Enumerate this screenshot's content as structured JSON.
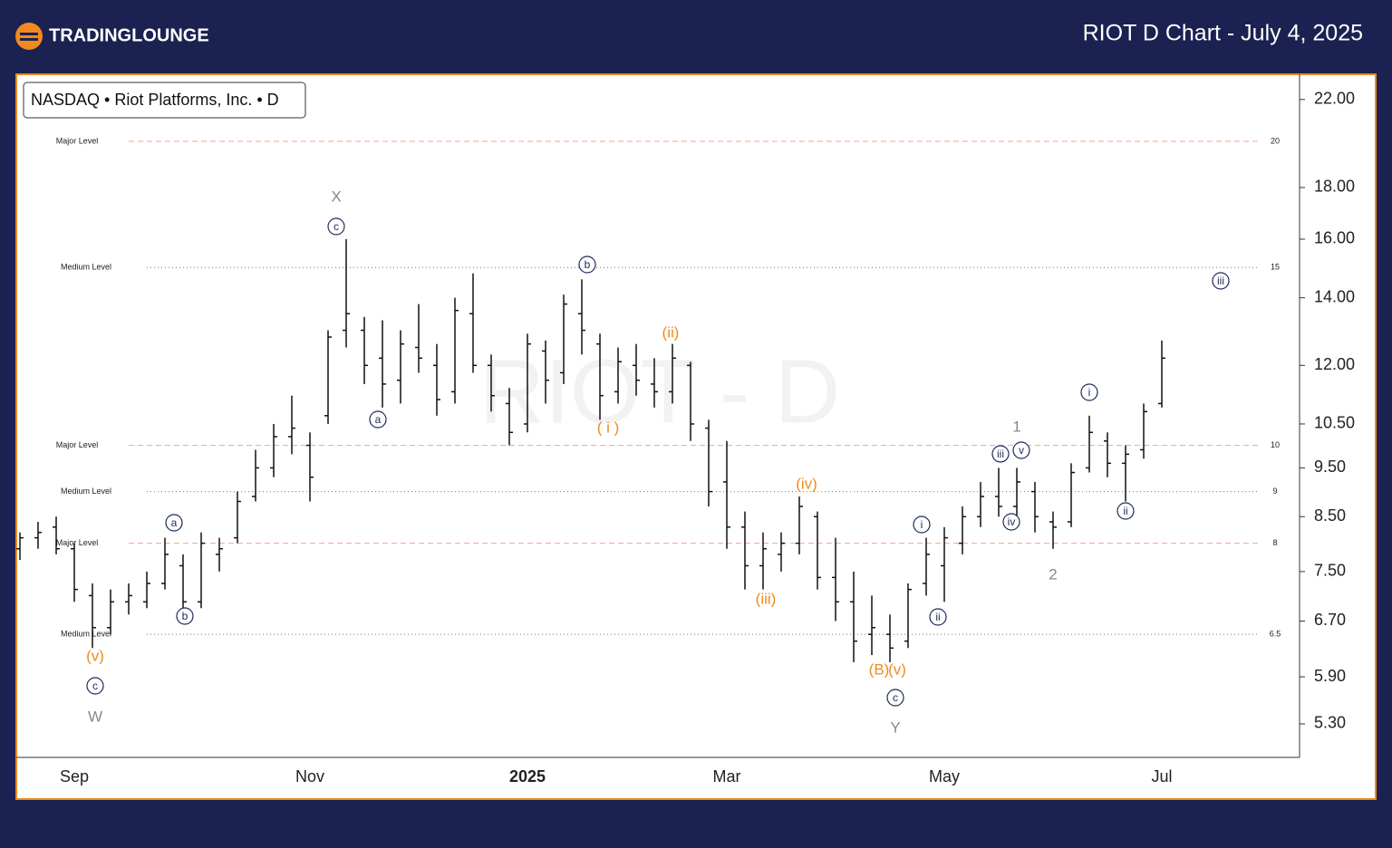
{
  "header": {
    "logo": "TRADINGLOUNGE",
    "title": "RIOT D Chart - July 4, 2025"
  },
  "chart_data": {
    "type": "ohlc",
    "legend_text": "NASDAQ • Riot Platforms, Inc. • D",
    "watermark": "RIOT - D",
    "color": "#111111",
    "log_y": true,
    "ylim": [
      4.91,
      23.3
    ],
    "yticks": [
      {
        "value": 22,
        "label": "22.00"
      },
      {
        "value": 18,
        "label": "18.00"
      },
      {
        "value": 16,
        "label": "16.00"
      },
      {
        "value": 14,
        "label": "14.00"
      },
      {
        "value": 12,
        "label": "12.00"
      },
      {
        "value": 10.5,
        "label": "10.50"
      },
      {
        "value": 9.5,
        "label": "9.50"
      },
      {
        "value": 8.5,
        "label": "8.50"
      },
      {
        "value": 7.5,
        "label": "7.50"
      },
      {
        "value": 6.7,
        "label": "6.70"
      },
      {
        "value": 5.9,
        "label": "5.90"
      },
      {
        "value": 5.3,
        "label": "5.30"
      }
    ],
    "categories": [
      null,
      null,
      null,
      "Sep",
      null,
      null,
      null,
      null,
      null,
      null,
      null,
      null,
      null,
      null,
      null,
      null,
      "Nov",
      null,
      null,
      null,
      null,
      null,
      null,
      null,
      null,
      null,
      null,
      null,
      "2025",
      null,
      null,
      null,
      null,
      null,
      null,
      null,
      null,
      null,
      null,
      "Mar",
      null,
      null,
      null,
      null,
      null,
      null,
      null,
      null,
      null,
      null,
      null,
      "May",
      null,
      null,
      null,
      null,
      null,
      null,
      null,
      null,
      null,
      null,
      null,
      "Jul"
    ],
    "open": [
      7.9,
      8.1,
      8.3,
      7.9,
      7.1,
      6.6,
      7.0,
      7.0,
      7.3,
      7.6,
      7.0,
      7.8,
      8.1,
      8.9,
      9.5,
      10.2,
      10.0,
      10.7,
      13.0,
      13.0,
      12.2,
      11.6,
      12.5,
      12.0,
      11.3,
      13.5,
      12.0,
      11.0,
      10.5,
      12.4,
      11.8,
      13.5,
      12.6,
      11.3,
      12.0,
      11.5,
      11.3,
      12.0,
      10.4,
      9.2,
      8.3,
      7.6,
      7.8,
      8.0,
      8.5,
      7.4,
      7.0,
      6.5,
      6.5,
      6.4,
      7.3,
      7.6,
      8.0,
      8.5,
      8.9,
      8.7,
      9.0,
      8.4,
      8.4,
      9.5,
      10.1,
      9.6,
      9.9,
      11.0
    ],
    "high": [
      8.2,
      8.4,
      8.5,
      8.0,
      7.3,
      7.2,
      7.3,
      7.5,
      8.1,
      7.8,
      8.2,
      8.1,
      9.0,
      9.9,
      10.5,
      11.2,
      10.3,
      13.0,
      16.0,
      13.4,
      13.3,
      13.0,
      13.8,
      12.6,
      14.0,
      14.8,
      12.3,
      11.4,
      12.9,
      12.7,
      14.1,
      14.6,
      12.9,
      12.5,
      12.6,
      12.2,
      12.6,
      12.1,
      10.6,
      10.1,
      8.6,
      8.2,
      8.2,
      8.9,
      8.6,
      8.1,
      7.5,
      7.1,
      6.8,
      7.3,
      8.1,
      8.3,
      8.7,
      9.2,
      9.5,
      9.5,
      9.2,
      8.6,
      9.6,
      10.7,
      10.3,
      10.0,
      11.0,
      12.7
    ],
    "low": [
      7.7,
      7.9,
      7.8,
      7.0,
      6.3,
      6.5,
      6.8,
      6.9,
      7.2,
      6.8,
      6.9,
      7.5,
      8.0,
      8.8,
      9.3,
      9.8,
      8.8,
      10.5,
      12.5,
      11.5,
      10.9,
      11.0,
      11.8,
      10.7,
      11.0,
      11.8,
      10.8,
      10.0,
      10.3,
      11.0,
      11.5,
      12.3,
      10.6,
      11.0,
      11.2,
      10.9,
      11.0,
      10.1,
      8.7,
      7.9,
      7.2,
      7.2,
      7.5,
      7.8,
      7.2,
      6.7,
      6.1,
      6.2,
      6.1,
      6.3,
      7.1,
      7.0,
      7.8,
      8.3,
      8.5,
      8.5,
      8.2,
      7.9,
      8.3,
      9.4,
      9.3,
      8.8,
      9.7,
      10.9
    ],
    "close": [
      8.1,
      8.2,
      7.9,
      7.2,
      6.6,
      7.0,
      7.1,
      7.3,
      7.8,
      7.0,
      8.0,
      7.9,
      8.8,
      9.5,
      10.2,
      10.4,
      9.3,
      12.8,
      13.5,
      12.0,
      11.5,
      12.6,
      12.2,
      11.1,
      13.6,
      12.0,
      11.2,
      10.3,
      12.6,
      11.6,
      13.8,
      13.0,
      11.2,
      12.1,
      11.6,
      11.3,
      12.2,
      10.5,
      9.0,
      8.3,
      7.6,
      7.9,
      8.0,
      8.7,
      7.4,
      7.0,
      6.4,
      6.6,
      6.3,
      7.2,
      7.8,
      8.1,
      8.5,
      8.9,
      8.7,
      9.2,
      8.5,
      8.3,
      9.4,
      10.3,
      9.6,
      9.8,
      10.8,
      12.2
    ],
    "levels": [
      {
        "name": "Major Level",
        "value": 20,
        "style": "major"
      },
      {
        "name": "Medium Level",
        "value": 15,
        "style": "medium"
      },
      {
        "name": "Major Level",
        "value": 10,
        "style": "major"
      },
      {
        "name": "Medium Level",
        "value": 9,
        "style": "medium"
      },
      {
        "name": "Major Level",
        "value": 8,
        "style": "major"
      },
      {
        "name": "Medium Level",
        "value": 6.5,
        "style": "medium"
      }
    ],
    "annotations": [
      {
        "text": "X",
        "color": "#888888"
      },
      {
        "text": "c",
        "color": "#1f2a5a",
        "circled": true
      },
      {
        "text": "(v)",
        "color": "#f08a1c"
      },
      {
        "text": "c",
        "color": "#1f2a5a",
        "circled": true
      },
      {
        "text": "W",
        "color": "#888888"
      },
      {
        "text": "a",
        "color": "#1f2a5a",
        "circled": true
      },
      {
        "text": "b",
        "color": "#1f2a5a",
        "circled": true
      },
      {
        "text": "a",
        "color": "#1f2a5a",
        "circled": true
      },
      {
        "text": "b",
        "color": "#1f2a5a",
        "circled": true
      },
      {
        "text": "(ii)",
        "color": "#f08a1c"
      },
      {
        "text": "( i )",
        "color": "#f08a1c"
      },
      {
        "text": "(iv)",
        "color": "#f08a1c"
      },
      {
        "text": "(iii)",
        "color": "#f08a1c"
      },
      {
        "text": "(B)",
        "color": "#f08a1c"
      },
      {
        "text": "(v)",
        "color": "#f08a1c"
      },
      {
        "text": "c",
        "color": "#1f2a5a",
        "circled": true
      },
      {
        "text": "Y",
        "color": "#888888"
      },
      {
        "text": "i",
        "color": "#1f2a5a",
        "circled": true
      },
      {
        "text": "ii",
        "color": "#1f2a5a",
        "circled": true
      },
      {
        "text": "iii",
        "color": "#1f2a5a",
        "circled": true
      },
      {
        "text": "v",
        "color": "#1f2a5a",
        "circled": true
      },
      {
        "text": "iv",
        "color": "#1f2a5a",
        "circled": true
      },
      {
        "text": "1",
        "color": "#888888"
      },
      {
        "text": "2",
        "color": "#888888"
      },
      {
        "text": "i",
        "color": "#1f2a5a",
        "circled": true
      },
      {
        "text": "ii",
        "color": "#1f2a5a",
        "circled": true
      },
      {
        "text": "iii",
        "color": "#1f2a5a",
        "circled": true
      }
    ]
  }
}
